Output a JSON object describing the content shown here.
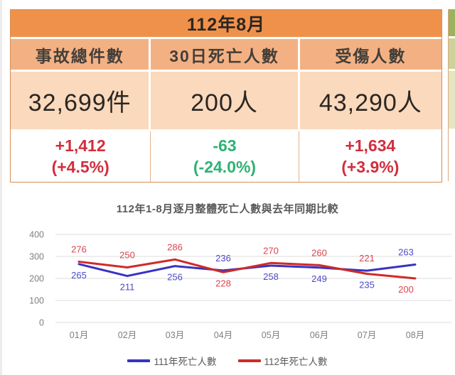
{
  "stats_table": {
    "title": "112年8月",
    "columns": [
      {
        "header": "事故總件數",
        "value": "32,699件",
        "change": "+1,412",
        "change_pct": "(+4.5%)",
        "trend": "red"
      },
      {
        "header": "30日死亡人數",
        "value": "200人",
        "change": "-63",
        "change_pct": "(-24.0%)",
        "trend": "green"
      },
      {
        "header": "受傷人數",
        "value": "43,290人",
        "change": "+1,634",
        "change_pct": "(+3.9%)",
        "trend": "red"
      }
    ],
    "colors": {
      "title_bg": "#f0914b",
      "header_bg": "#f3b183",
      "value_bg": "#fad9bd",
      "title_text": "#2b2622",
      "header_text": "#443e39",
      "value_text": "#2b2622",
      "change_red": "#d22e3e",
      "change_green": "#2eb273"
    }
  },
  "adjacent_table": {
    "colors": {
      "title_bg": "#9cb25e",
      "header_bg": "#ccd39a",
      "value_bg": "#e3e6c0"
    }
  },
  "chart_data": {
    "type": "line",
    "title": "112年1-8月逐月整體死亡人數與去年同期比較",
    "title_color": "#595959",
    "categories": [
      "01月",
      "02月",
      "03月",
      "04月",
      "05月",
      "06月",
      "07月",
      "08月"
    ],
    "series": [
      {
        "name": "111年死亡人數",
        "color": "#3833c2",
        "label_color": "#4e4ac8",
        "values": [
          265,
          211,
          256,
          236,
          258,
          249,
          235,
          263
        ]
      },
      {
        "name": "112年死亡人數",
        "color": "#cf2b28",
        "label_color": "#d8454f",
        "values": [
          276,
          250,
          286,
          228,
          270,
          260,
          221,
          200
        ]
      }
    ],
    "ylim": [
      0,
      400
    ],
    "yticks": [
      400,
      300,
      200,
      100,
      0
    ],
    "grid": true,
    "legend_position": "bottom",
    "axis_text_color": "#7f7f7f",
    "gridline_color": "#dcdcdc",
    "label_above_series_index": [
      1,
      1,
      1,
      0,
      1,
      1,
      1,
      0
    ],
    "legend_text_color": "#595959"
  }
}
